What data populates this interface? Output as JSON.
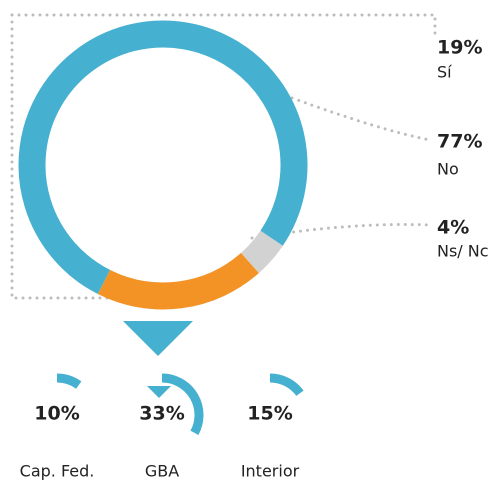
{
  "chart_data": [
    {
      "type": "donut",
      "categories": [
        "Sí",
        "No",
        "Ns/ Nc"
      ],
      "values": [
        19,
        77,
        4
      ],
      "value_labels": [
        "19%",
        "77%",
        "4%"
      ],
      "colors": [
        "#f39325",
        "#45b0cf",
        "#d2d2d2"
      ]
    },
    {
      "type": "radial",
      "categories": [
        "Cap. Fed.",
        "GBA",
        "Interior"
      ],
      "values": [
        10,
        33,
        15
      ],
      "value_labels": [
        "10%",
        "33%",
        "15%"
      ],
      "color": "#45b0cf"
    }
  ]
}
